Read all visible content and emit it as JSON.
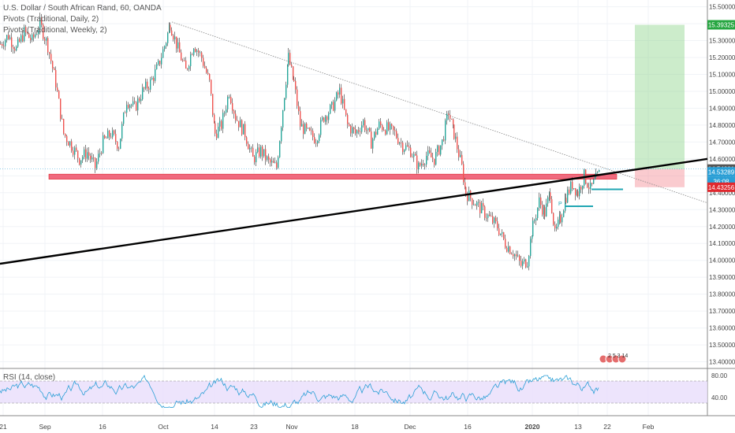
{
  "header": {
    "title": "U.S. Dollar / South African Rand, 60, OANDA",
    "pivots_daily": "Pivots (Traditional, Daily, 2)",
    "pivots_weekly": "Pivots (Traditional, Weekly, 2)"
  },
  "rsi": {
    "label": "RSI (14, close)",
    "ticks": [
      "80.00",
      "40.00"
    ],
    "band": [
      30,
      70
    ],
    "color": "#2a9fd6"
  },
  "events_badge": "2 5 3 14",
  "pivot_marker": "P",
  "price_tags": [
    {
      "value": "15.39325",
      "color": "#26a641"
    },
    {
      "value": "14.54001",
      "color": "#555555"
    },
    {
      "value": "14.53289",
      "color": "#2a9fd6"
    },
    {
      "value": "36:08",
      "color": "#2a9fd6"
    },
    {
      "value": "14.43256",
      "color": "#e0282e"
    }
  ],
  "chart_data": {
    "type": "candlestick",
    "y_axis": {
      "ticks": [
        "15.50000",
        "15.40000",
        "15.30000",
        "15.20000",
        "15.10000",
        "15.00000",
        "14.90000",
        "14.80000",
        "14.70000",
        "14.60000",
        "14.50000",
        "14.40000",
        "14.30000",
        "14.20000",
        "14.10000",
        "14.00000",
        "13.90000",
        "13.80000",
        "13.70000",
        "13.60000",
        "13.50000",
        "13.40000"
      ],
      "range": [
        13.37,
        15.54
      ]
    },
    "x_axis": {
      "ticks": [
        "21",
        "Sep",
        "16",
        "Oct",
        "14",
        "23",
        "Nov",
        "18",
        "Dec",
        "16",
        "2020",
        "13",
        "22",
        "Feb"
      ]
    },
    "price_path": [
      [
        0,
        15.28
      ],
      [
        10,
        15.33
      ],
      [
        20,
        15.25
      ],
      [
        30,
        15.35
      ],
      [
        40,
        15.3
      ],
      [
        50,
        15.4
      ],
      [
        60,
        15.27
      ],
      [
        70,
        15.05
      ],
      [
        80,
        14.75
      ],
      [
        90,
        14.68
      ],
      [
        100,
        14.6
      ],
      [
        110,
        14.64
      ],
      [
        120,
        14.55
      ],
      [
        130,
        14.7
      ],
      [
        140,
        14.75
      ],
      [
        150,
        14.68
      ],
      [
        160,
        14.95
      ],
      [
        170,
        14.9
      ],
      [
        180,
        15.0
      ],
      [
        190,
        15.05
      ],
      [
        200,
        15.15
      ],
      [
        210,
        15.3
      ],
      [
        215,
        15.4
      ],
      [
        225,
        15.25
      ],
      [
        235,
        15.12
      ],
      [
        245,
        15.28
      ],
      [
        255,
        15.2
      ],
      [
        265,
        15.05
      ],
      [
        272,
        14.75
      ],
      [
        280,
        14.8
      ],
      [
        290,
        15.0
      ],
      [
        298,
        14.85
      ],
      [
        310,
        14.75
      ],
      [
        320,
        14.6
      ],
      [
        330,
        14.65
      ],
      [
        340,
        14.58
      ],
      [
        350,
        14.55
      ],
      [
        358,
        14.9
      ],
      [
        365,
        15.2
      ],
      [
        372,
        15.05
      ],
      [
        380,
        14.8
      ],
      [
        390,
        14.75
      ],
      [
        400,
        14.72
      ],
      [
        410,
        14.85
      ],
      [
        420,
        14.9
      ],
      [
        430,
        15.0
      ],
      [
        440,
        14.8
      ],
      [
        450,
        14.75
      ],
      [
        460,
        14.82
      ],
      [
        470,
        14.7
      ],
      [
        480,
        14.8
      ],
      [
        490,
        14.78
      ],
      [
        500,
        14.75
      ],
      [
        510,
        14.68
      ],
      [
        520,
        14.65
      ],
      [
        530,
        14.55
      ],
      [
        540,
        14.62
      ],
      [
        550,
        14.6
      ],
      [
        560,
        14.7
      ],
      [
        568,
        14.88
      ],
      [
        575,
        14.75
      ],
      [
        585,
        14.55
      ],
      [
        590,
        14.4
      ],
      [
        600,
        14.35
      ],
      [
        610,
        14.3
      ],
      [
        620,
        14.25
      ],
      [
        630,
        14.2
      ],
      [
        640,
        14.1
      ],
      [
        650,
        14.05
      ],
      [
        660,
        13.97
      ],
      [
        668,
        14.0
      ],
      [
        675,
        14.2
      ],
      [
        683,
        14.35
      ],
      [
        690,
        14.28
      ],
      [
        697,
        14.4
      ],
      [
        703,
        14.15
      ],
      [
        710,
        14.25
      ],
      [
        717,
        14.38
      ],
      [
        725,
        14.45
      ],
      [
        732,
        14.4
      ],
      [
        740,
        14.5
      ],
      [
        748,
        14.42
      ],
      [
        755,
        14.48
      ],
      [
        760,
        14.52
      ]
    ],
    "trendlines": [
      {
        "name": "resistance",
        "from": [
          218,
          15.41
        ],
        "to": [
          897,
          14.34
        ],
        "style": "dotted"
      },
      {
        "name": "support",
        "from": [
          0,
          13.98
        ],
        "to": [
          897,
          14.6
        ],
        "style": "solid"
      }
    ],
    "zones": [
      {
        "name": "support-zone",
        "price": [
          14.48,
          14.51
        ],
        "x": [
          62,
          782
        ],
        "color": "#f06a7e"
      }
    ],
    "position": {
      "target": 15.39325,
      "entry": 14.54001,
      "stop": 14.43256,
      "x": [
        805,
        868
      ]
    },
    "pivot_levels": [
      {
        "price": 14.42,
        "x": [
          750,
          790
        ]
      },
      {
        "price": 14.32,
        "x": [
          716,
          752
        ]
      }
    ],
    "last_price": 14.53289
  }
}
